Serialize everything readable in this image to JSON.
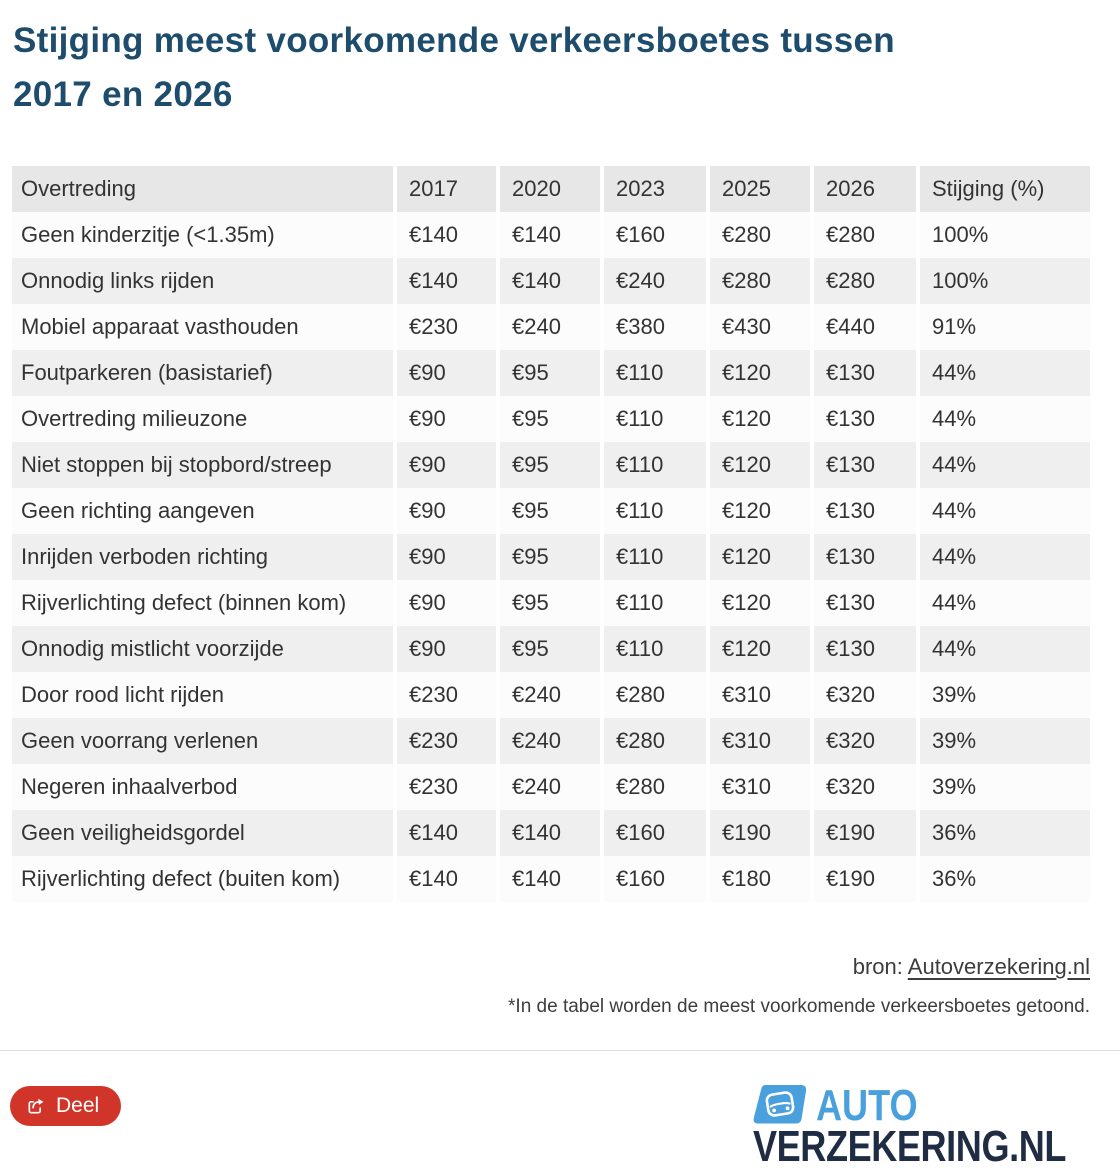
{
  "title": {
    "line1": "Stijging meest voorkomende verkeersboetes tussen",
    "line2": "2017 en 2026"
  },
  "chart_data": {
    "type": "table",
    "title": "Stijging meest voorkomende verkeersboetes tussen 2017 en 2026",
    "columns": [
      "Overtreding",
      "2017",
      "2020",
      "2023",
      "2025",
      "2026",
      "Stijging (%)"
    ],
    "rows": [
      [
        "Geen kinderzitje (<1.35m)",
        "€140",
        "€140",
        "€160",
        "€280",
        "€280",
        "100%"
      ],
      [
        "Onnodig links rijden",
        "€140",
        "€140",
        "€240",
        "€280",
        "€280",
        "100%"
      ],
      [
        "Mobiel apparaat vasthouden",
        "€230",
        "€240",
        "€380",
        "€430",
        "€440",
        "91%"
      ],
      [
        "Foutparkeren (basistarief)",
        "€90",
        "€95",
        "€110",
        "€120",
        "€130",
        "44%"
      ],
      [
        "Overtreding milieuzone",
        "€90",
        "€95",
        "€110",
        "€120",
        "€130",
        "44%"
      ],
      [
        "Niet stoppen bij stopbord/streep",
        "€90",
        "€95",
        "€110",
        "€120",
        "€130",
        "44%"
      ],
      [
        "Geen richting aangeven",
        "€90",
        "€95",
        "€110",
        "€120",
        "€130",
        "44%"
      ],
      [
        "Inrijden verboden richting",
        "€90",
        "€95",
        "€110",
        "€120",
        "€130",
        "44%"
      ],
      [
        "Rijverlichting defect (binnen kom)",
        "€90",
        "€95",
        "€110",
        "€120",
        "€130",
        "44%"
      ],
      [
        "Onnodig mistlicht voorzijde",
        "€90",
        "€95",
        "€110",
        "€120",
        "€130",
        "44%"
      ],
      [
        "Door rood licht rijden",
        "€230",
        "€240",
        "€280",
        "€310",
        "€320",
        "39%"
      ],
      [
        "Geen voorrang verlenen",
        "€230",
        "€240",
        "€280",
        "€310",
        "€320",
        "39%"
      ],
      [
        "Negeren inhaalverbod",
        "€230",
        "€240",
        "€280",
        "€310",
        "€320",
        "39%"
      ],
      [
        "Geen veiligheidsgordel",
        "€140",
        "€140",
        "€160",
        "€190",
        "€190",
        "36%"
      ],
      [
        "Rijverlichting defect (buiten kom)",
        "€140",
        "€140",
        "€160",
        "€180",
        "€190",
        "36%"
      ]
    ]
  },
  "source": {
    "prefix": "bron: ",
    "link_text": "Autoverzekering.nl"
  },
  "footnote": "*In de tabel worden de meest voorkomende verkeersboetes getoond.",
  "share": {
    "label": "Deel"
  },
  "logo": {
    "line1": "AUTO",
    "line2": "VERZEKERING.NL"
  },
  "colors": {
    "title": "#1d4c6d",
    "header_bg": "#e7e7e7",
    "row_odd_bg": "#fcfcfc",
    "row_even_bg": "#efefef",
    "cell_text": "#333333",
    "source_text": "#3d3d3d",
    "divider": "#dddddd",
    "share_red": "#d13529",
    "logo_blue": "#4aa0dd",
    "logo_navy": "#1f2c43"
  }
}
